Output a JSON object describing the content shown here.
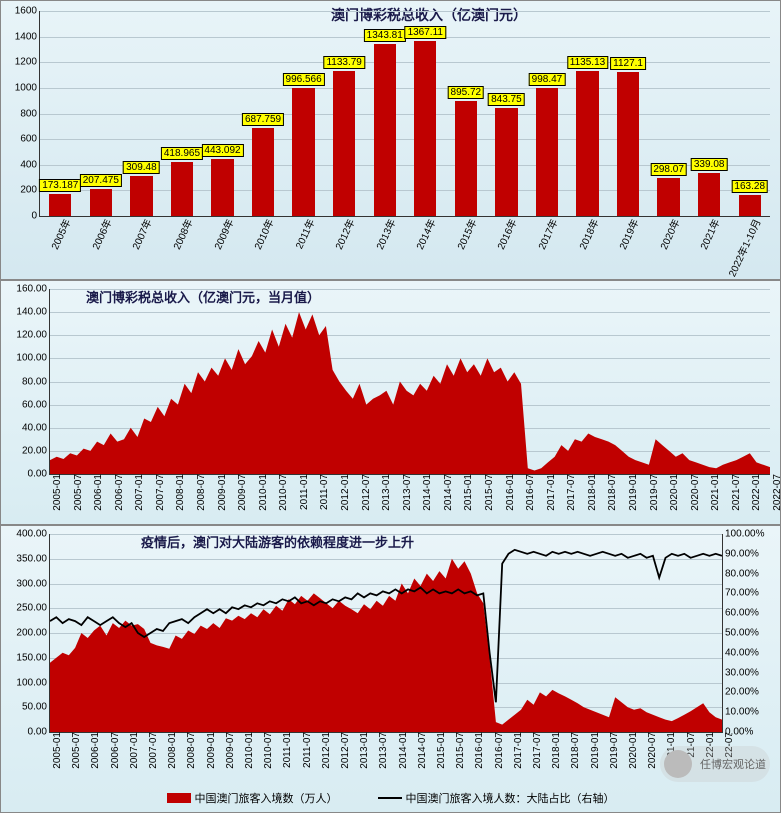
{
  "chart1": {
    "type": "bar",
    "title": "澳门博彩税总收入（亿澳门元）",
    "title_fontsize": 14,
    "title_color": "#1a1a4a",
    "plot_bg_gradient": [
      "#e8f4f8",
      "#d4e8f0"
    ],
    "bar_color": "#c00000",
    "label_bg": "#ffff00",
    "label_border": "#000000",
    "grid_color": "#b8c8d0",
    "ylim": [
      0,
      1600
    ],
    "ytick_step": 200,
    "yticks": [
      0,
      200,
      400,
      600,
      800,
      1000,
      1200,
      1400,
      1600
    ],
    "categories": [
      "2005年",
      "2006年",
      "2007年",
      "2008年",
      "2009年",
      "2010年",
      "2011年",
      "2012年",
      "2013年",
      "2014年",
      "2015年",
      "2016年",
      "2017年",
      "2018年",
      "2019年",
      "2020年",
      "2021年",
      "2022年1-10月"
    ],
    "values": [
      173.187,
      207.475,
      309.48,
      418.965,
      443.092,
      687.759,
      996.566,
      1133.79,
      1343.81,
      1367.11,
      895.72,
      843.75,
      998.47,
      1135.13,
      1127.1,
      298.07,
      339.08,
      163.28
    ],
    "bar_width": 0.55
  },
  "chart2": {
    "type": "area",
    "title": "澳门博彩税总收入（亿澳门元，当月值）",
    "title_fontsize": 13,
    "title_color": "#1a1a4a",
    "plot_bg_gradient": [
      "#eaf5f9",
      "#d8ecf2"
    ],
    "area_color": "#c00000",
    "grid_color": "#b8c8d0",
    "ylim": [
      0,
      160
    ],
    "ytick_step": 20,
    "yticks": [
      0,
      20,
      40,
      60,
      80,
      100,
      120,
      140,
      160
    ],
    "xcats": [
      "2005-01",
      "2005-07",
      "2006-01",
      "2006-07",
      "2007-01",
      "2007-07",
      "2008-01",
      "2008-07",
      "2009-01",
      "2009-07",
      "2010-01",
      "2010-07",
      "2011-01",
      "2011-07",
      "2012-01",
      "2012-07",
      "2013-01",
      "2013-07",
      "2014-01",
      "2014-07",
      "2015-01",
      "2015-07",
      "2016-01",
      "2016-07",
      "2017-01",
      "2017-07",
      "2018-01",
      "2018-07",
      "2019-01",
      "2019-07",
      "2020-01",
      "2020-07",
      "2021-01",
      "2021-07",
      "2022-01",
      "2022-07"
    ],
    "values": [
      12,
      15,
      13,
      18,
      16,
      22,
      20,
      28,
      25,
      35,
      28,
      30,
      40,
      32,
      48,
      45,
      58,
      50,
      65,
      60,
      78,
      70,
      88,
      80,
      92,
      85,
      100,
      90,
      108,
      95,
      102,
      115,
      105,
      125,
      110,
      130,
      118,
      140,
      125,
      138,
      120,
      128,
      90,
      80,
      72,
      65,
      78,
      60,
      65,
      68,
      72,
      60,
      80,
      72,
      68,
      78,
      72,
      85,
      78,
      95,
      85,
      100,
      88,
      95,
      85,
      100,
      88,
      92,
      80,
      88,
      78,
      5,
      3,
      5,
      10,
      15,
      25,
      20,
      30,
      28,
      35,
      32,
      30,
      28,
      25,
      20,
      15,
      12,
      10,
      8,
      30,
      25,
      20,
      15,
      18,
      12,
      10,
      8,
      6,
      5,
      8,
      10,
      12,
      15,
      18,
      10,
      8,
      6
    ]
  },
  "chart3": {
    "type": "area+line",
    "title": "疫情后，澳门对大陆游客的依赖程度进一步上升",
    "title_fontsize": 13,
    "title_color": "#1a1a4a",
    "plot_bg_gradient": [
      "#eaf5f9",
      "#d8ecf2"
    ],
    "area_color": "#c00000",
    "line_color": "#000000",
    "line_width": 1.8,
    "grid_color": "#b8c8d0",
    "ylim_left": [
      0,
      400
    ],
    "ytick_left_step": 50,
    "yticks_left": [
      0,
      50,
      100,
      150,
      200,
      250,
      300,
      350,
      400
    ],
    "ylim_right": [
      0,
      1.0
    ],
    "ytick_right_step": 0.1,
    "yticks_right": [
      "0.00%",
      "10.00%",
      "20.00%",
      "30.00%",
      "40.00%",
      "50.00%",
      "60.00%",
      "70.00%",
      "80.00%",
      "90.00%",
      "100.00%"
    ],
    "xcats": [
      "2005-01",
      "2005-07",
      "2006-01",
      "2006-07",
      "2007-01",
      "2007-07",
      "2008-01",
      "2008-07",
      "2009-01",
      "2009-07",
      "2010-01",
      "2010-07",
      "2011-01",
      "2011-07",
      "2012-01",
      "2012-07",
      "2013-01",
      "2013-07",
      "2014-01",
      "2014-07",
      "2015-01",
      "2015-07",
      "2016-01",
      "2016-07",
      "2017-01",
      "2017-07",
      "2018-01",
      "2018-07",
      "2019-01",
      "2019-07",
      "2020-01",
      "2020-07",
      "21-01",
      "21-07",
      "22-01",
      "22-07"
    ],
    "area_values": [
      140,
      150,
      160,
      155,
      170,
      200,
      190,
      205,
      215,
      195,
      220,
      210,
      225,
      215,
      218,
      208,
      180,
      175,
      172,
      168,
      195,
      188,
      205,
      198,
      215,
      208,
      220,
      210,
      230,
      225,
      235,
      228,
      240,
      232,
      248,
      238,
      255,
      245,
      268,
      258,
      275,
      265,
      280,
      270,
      260,
      250,
      265,
      255,
      248,
      240,
      258,
      248,
      265,
      255,
      275,
      265,
      300,
      280,
      310,
      295,
      320,
      305,
      325,
      310,
      350,
      330,
      345,
      320,
      280,
      260,
      150,
      20,
      15,
      25,
      35,
      45,
      65,
      55,
      80,
      72,
      85,
      78,
      72,
      65,
      58,
      50,
      45,
      40,
      35,
      30,
      70,
      60,
      50,
      45,
      48,
      40,
      35,
      30,
      25,
      22,
      28,
      35,
      42,
      50,
      58,
      40,
      30,
      25
    ],
    "line_values": [
      0.56,
      0.58,
      0.55,
      0.57,
      0.56,
      0.54,
      0.58,
      0.56,
      0.54,
      0.56,
      0.58,
      0.55,
      0.53,
      0.55,
      0.5,
      0.48,
      0.5,
      0.52,
      0.51,
      0.55,
      0.56,
      0.57,
      0.55,
      0.58,
      0.6,
      0.62,
      0.6,
      0.62,
      0.6,
      0.63,
      0.62,
      0.64,
      0.63,
      0.65,
      0.64,
      0.66,
      0.65,
      0.67,
      0.66,
      0.68,
      0.65,
      0.66,
      0.64,
      0.66,
      0.65,
      0.67,
      0.66,
      0.68,
      0.67,
      0.7,
      0.68,
      0.7,
      0.69,
      0.71,
      0.7,
      0.72,
      0.7,
      0.72,
      0.71,
      0.73,
      0.7,
      0.72,
      0.7,
      0.71,
      0.7,
      0.72,
      0.7,
      0.71,
      0.69,
      0.7,
      0.4,
      0.15,
      0.85,
      0.9,
      0.92,
      0.91,
      0.9,
      0.91,
      0.9,
      0.89,
      0.91,
      0.9,
      0.91,
      0.9,
      0.91,
      0.9,
      0.89,
      0.9,
      0.91,
      0.9,
      0.89,
      0.9,
      0.88,
      0.89,
      0.9,
      0.88,
      0.89,
      0.78,
      0.88,
      0.9,
      0.89,
      0.9,
      0.88,
      0.89,
      0.9,
      0.89,
      0.9,
      0.89
    ],
    "legend": {
      "area": "中国澳门旅客入境数（万人）",
      "line": "中国澳门旅客入境人数：大陆占比（右轴）"
    }
  },
  "watermark_text": "任博宏观论道"
}
